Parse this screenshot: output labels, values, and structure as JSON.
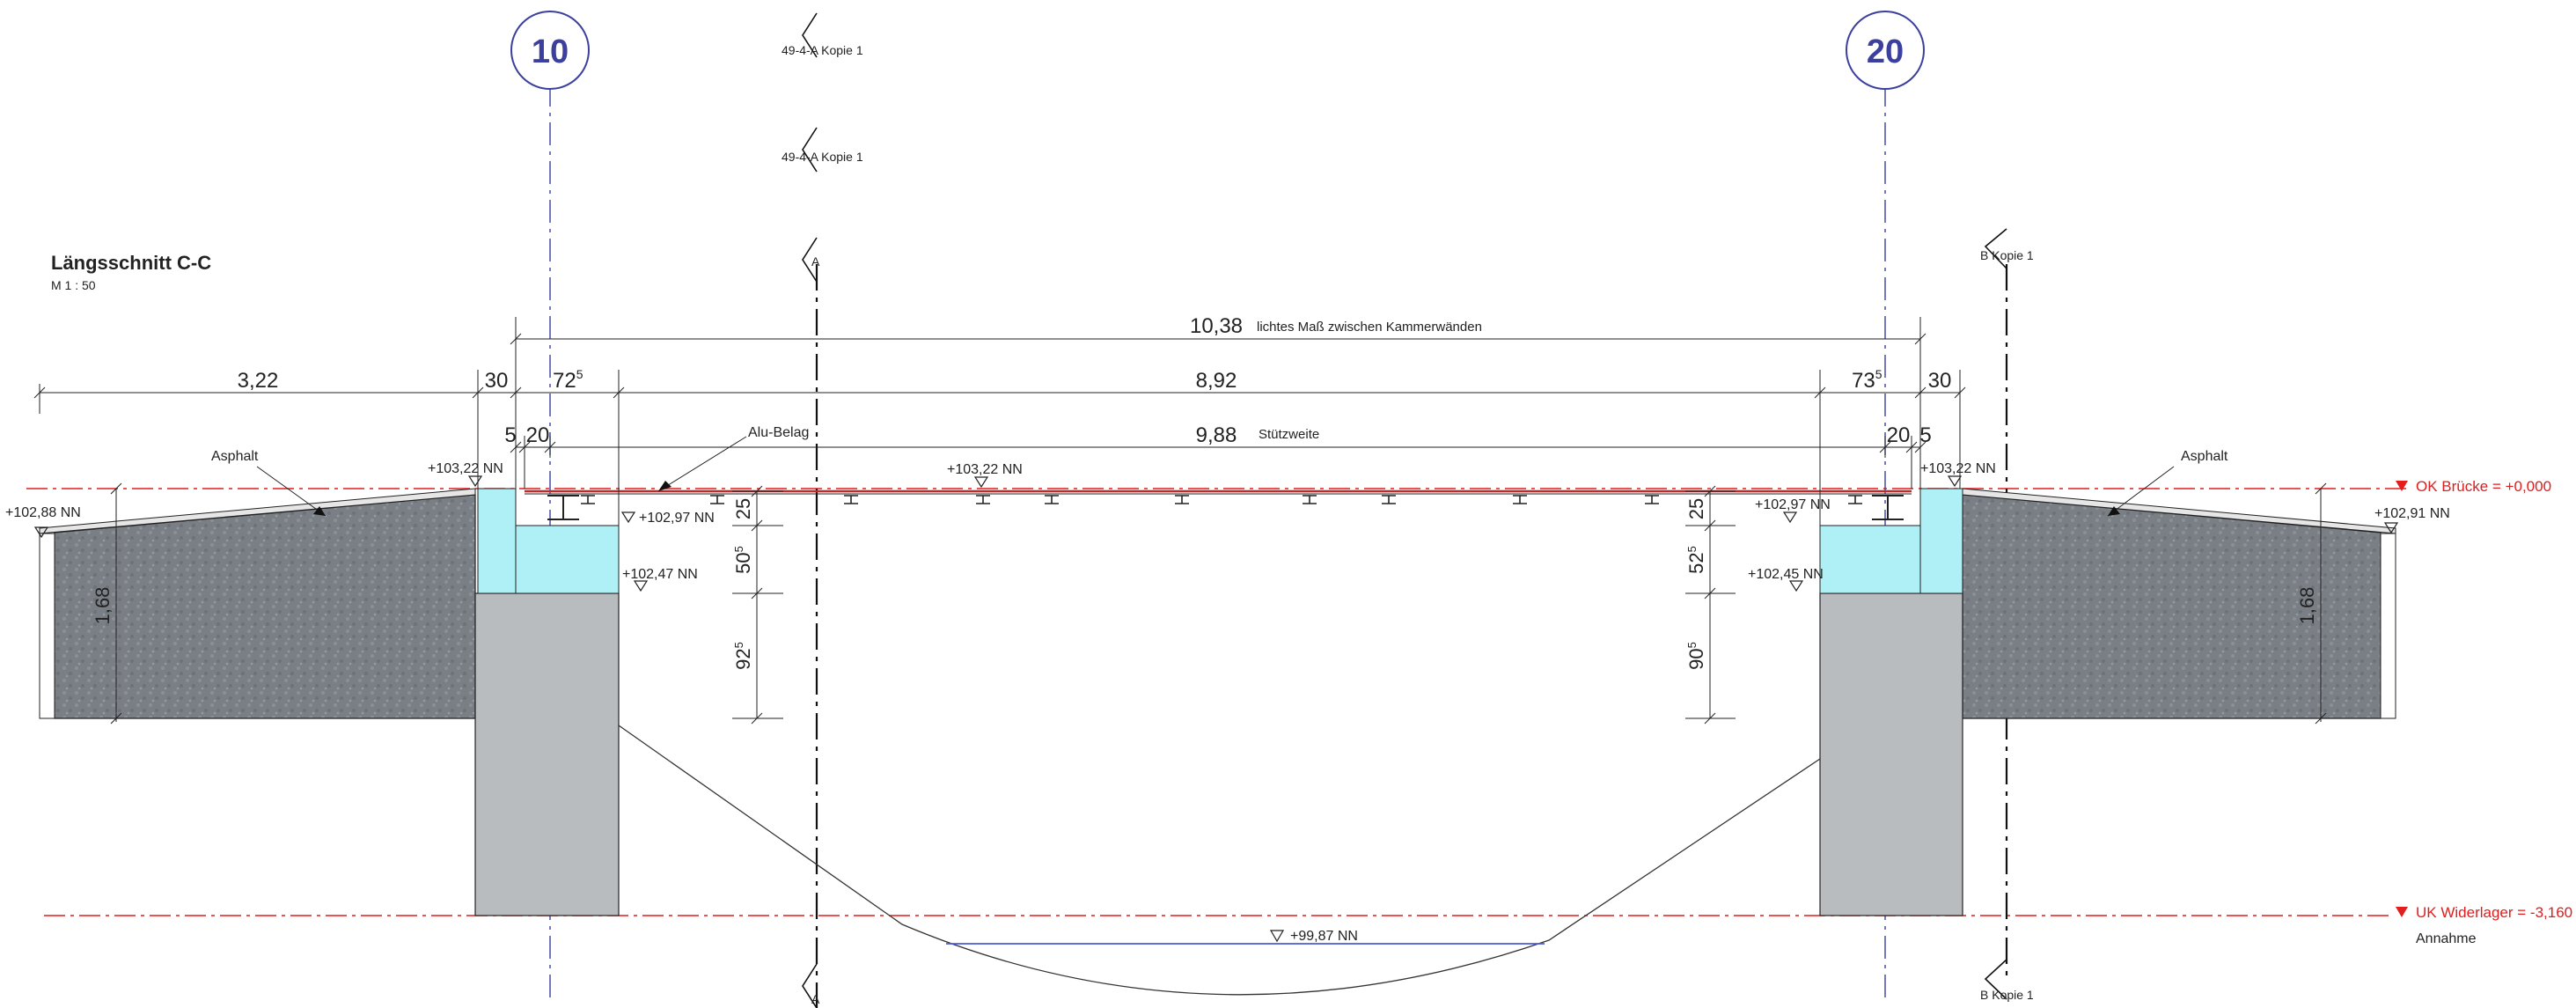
{
  "title": {
    "name": "Längsschnitt C-C",
    "scale": "M  1 : 50"
  },
  "axes": {
    "left": "10",
    "right": "20"
  },
  "section_marks": {
    "top_1": "49-4-A Kopie 1",
    "top_2": "49-4-A Kopie 1",
    "a_top": "A",
    "a_bottom": "A",
    "b_top": "B Kopie 1",
    "b_bottom": "B Kopie 1"
  },
  "dimensions": {
    "overall": "10,38",
    "overall_note": "lichtes Maß zwischen Kammerwänden",
    "left_approach": "3,22",
    "left_wall": "30",
    "left_seat_main": "72",
    "left_seat_sup": "5",
    "span_total": "8,92",
    "right_seat_main": "73",
    "right_seat_sup": "5",
    "right_wall": "30",
    "left_small_5": "5",
    "left_small_20": "20",
    "stuetzweite": "9,88",
    "stuetzweite_label": "Stützweite",
    "right_small_20": "20",
    "right_small_5": "5",
    "left_h_25": "25",
    "left_h_50_main": "50",
    "left_h_50_sup": "5",
    "left_h_92_main": "92",
    "left_h_92_sup": "5",
    "right_h_25": "25",
    "right_h_52_main": "52",
    "right_h_52_sup": "5",
    "right_h_90_main": "90",
    "right_h_90_sup": "5",
    "left_fill_height": "1,68",
    "right_fill_height": "1,68"
  },
  "labels": {
    "asphalt_left": "Asphalt",
    "asphalt_right": "Asphalt",
    "alu_belag": "Alu-Belag"
  },
  "levels": {
    "left_terrain": "+102,88 NN",
    "left_top": "+103,22 NN",
    "deck_mid": "+103,22 NN",
    "left_seat": "+102,97 NN",
    "left_base": "+102,47 NN",
    "right_top": "+103,22 NN",
    "right_seat": "+102,97 NN",
    "right_base": "+102,45 NN",
    "right_terrain": "+102,91 NN",
    "river_bottom": "+99,87 NN",
    "ok_bruecke": "OK Brücke  =  +0,000",
    "uk_widerlager": "UK Widerlager  =  -3,160",
    "annahme": "Annahme"
  },
  "colors": {
    "fill_gray": "#7a7f86",
    "abutment_gray": "#b9bcbf",
    "bearing_cyan": "#aef0f5",
    "red_line": "#e11d1d",
    "axis_blue": "#3b3f9e",
    "water_blue": "#4b5bd6"
  }
}
